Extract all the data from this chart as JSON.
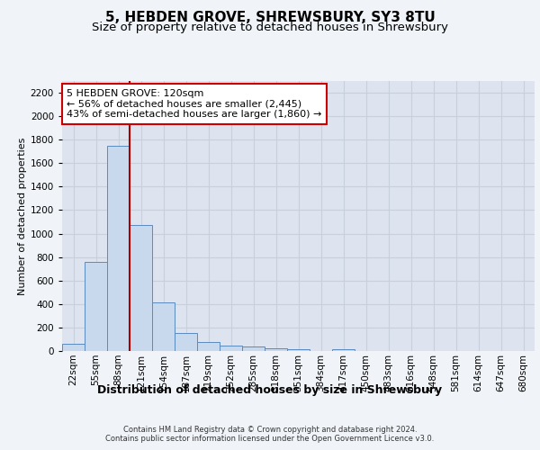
{
  "title": "5, HEBDEN GROVE, SHREWSBURY, SY3 8TU",
  "subtitle": "Size of property relative to detached houses in Shrewsbury",
  "xlabel": "Distribution of detached houses by size in Shrewsbury",
  "ylabel": "Number of detached properties",
  "footer_line1": "Contains HM Land Registry data © Crown copyright and database right 2024.",
  "footer_line2": "Contains public sector information licensed under the Open Government Licence v3.0.",
  "bin_labels": [
    "22sqm",
    "55sqm",
    "88sqm",
    "121sqm",
    "154sqm",
    "187sqm",
    "219sqm",
    "252sqm",
    "285sqm",
    "318sqm",
    "351sqm",
    "384sqm",
    "417sqm",
    "450sqm",
    "483sqm",
    "516sqm",
    "548sqm",
    "581sqm",
    "614sqm",
    "647sqm",
    "680sqm"
  ],
  "bar_values": [
    60,
    760,
    1750,
    1075,
    415,
    155,
    80,
    45,
    35,
    20,
    18,
    0,
    18,
    0,
    0,
    0,
    0,
    0,
    0,
    0,
    0
  ],
  "bar_color": "#c9d9ed",
  "bar_edge_color": "#5a8abf",
  "vline_x": 2.5,
  "vline_color": "#aa0000",
  "property_label": "5 HEBDEN GROVE: 120sqm",
  "annotation_line2": "← 56% of detached houses are smaller (2,445)",
  "annotation_line3": "43% of semi-detached houses are larger (1,860) →",
  "ylim": [
    0,
    2300
  ],
  "yticks": [
    0,
    200,
    400,
    600,
    800,
    1000,
    1200,
    1400,
    1600,
    1800,
    2000,
    2200
  ],
  "grid_color": "#c8d0dc",
  "figure_bg_color": "#f0f4f8",
  "plot_bg_color": "#dde4f0",
  "title_fontsize": 11,
  "subtitle_fontsize": 9.5,
  "ylabel_fontsize": 8,
  "xlabel_fontsize": 9,
  "tick_fontsize": 7.5,
  "annotation_box_edge_color": "#cc0000",
  "annotation_box_fill": "#ffffff",
  "annotation_fontsize": 8,
  "footer_fontsize": 6
}
